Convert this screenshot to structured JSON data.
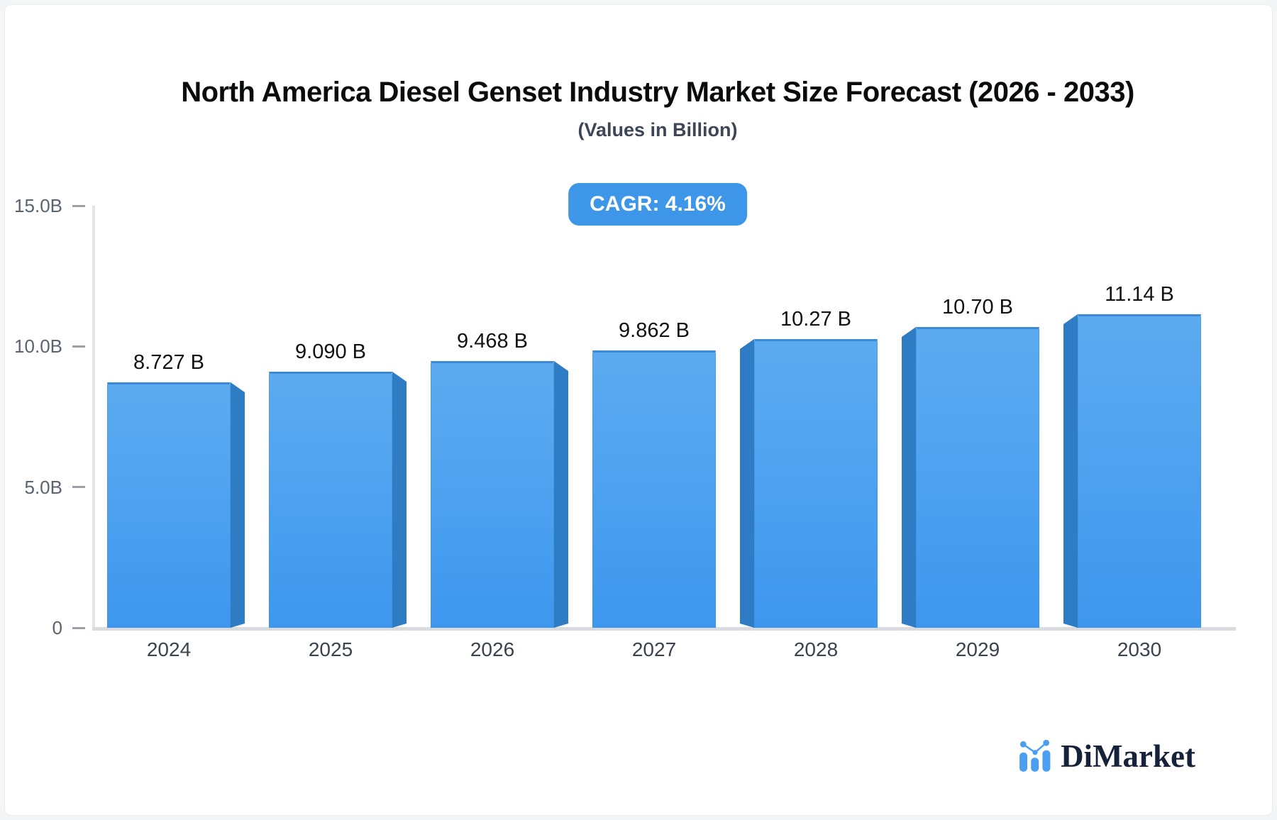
{
  "header": {
    "title": "North America Diesel Genset Industry Market Size Forecast (2026 - 2033)",
    "subtitle": "(Values in Billion)",
    "cagr_badge": "CAGR: 4.16%"
  },
  "chart_data": {
    "type": "bar",
    "title": "North America Diesel Genset Industry Market Size Forecast (2026 - 2033)",
    "subtitle": "(Values in Billion)",
    "unit": "Billion",
    "cagr": "4.16%",
    "categories": [
      "2024",
      "2025",
      "2026",
      "2027",
      "2028",
      "2029",
      "2030"
    ],
    "values": [
      8.727,
      9.09,
      9.468,
      9.862,
      10.27,
      10.7,
      11.14
    ],
    "value_labels": [
      "8.727 B",
      "9.090 B",
      "9.468 B",
      "9.862 B",
      "10.27 B",
      "10.70 B",
      "11.14 B"
    ],
    "ylim": [
      0,
      15
    ],
    "y_ticks": [
      {
        "label": "15.0B",
        "value": 15
      },
      {
        "label": "10.0B",
        "value": 10
      },
      {
        "label": "5.0B",
        "value": 5
      },
      {
        "label": "0",
        "value": 0
      }
    ],
    "grid": false,
    "legend": false,
    "style_3d": "perspective toward center: left bars show right side face, right bars show left side face, center bar flat",
    "colors": {
      "bar_face_top": "#5cabf0",
      "bar_face_bottom": "#3e97ee",
      "bar_side": "#2e7cc4",
      "bar_edge": "#3c8ad6",
      "badge_background": "#3e96e9",
      "badge_text": "#ffffff",
      "axis_line": "#e3e4e8",
      "baseline": "#d9dbdf",
      "tick": "#9aa1ab",
      "tick_label": "#5a6370",
      "year_label": "#3a434f",
      "value_label": "#101215"
    }
  },
  "footer": {
    "brand_name": "DiMarket",
    "logo_icon": "mini-bar-chart-icon",
    "brand_icon_color": "#4a9ff1",
    "brand_text_color": "#16223a"
  }
}
